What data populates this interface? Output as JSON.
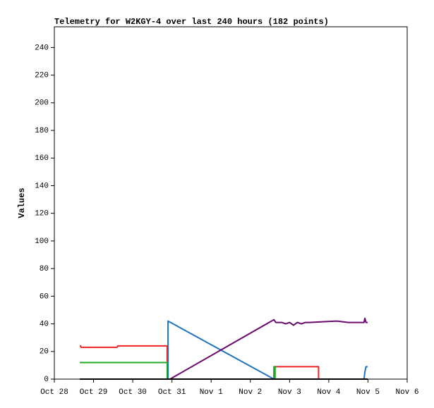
{
  "chart_data": {
    "type": "line",
    "title": "Telemetry for W2KGY-4 over last 240 hours (182 points)",
    "y_label": "Values",
    "xlim": [
      0,
      9
    ],
    "xticks": [
      {
        "value": 0,
        "label": "Oct 28"
      },
      {
        "value": 1,
        "label": "Oct 29"
      },
      {
        "value": 2,
        "label": "Oct 30"
      },
      {
        "value": 3,
        "label": "Oct 31"
      },
      {
        "value": 4,
        "label": "Nov 1"
      },
      {
        "value": 5,
        "label": "Nov 2"
      },
      {
        "value": 6,
        "label": "Nov 3"
      },
      {
        "value": 7,
        "label": "Nov 4"
      },
      {
        "value": 8,
        "label": "Nov 5"
      },
      {
        "value": 9,
        "label": "Nov 6"
      }
    ],
    "ylim": [
      0,
      255
    ],
    "yticks": [
      0,
      20,
      40,
      60,
      80,
      100,
      120,
      140,
      160,
      180,
      200,
      220,
      240
    ],
    "grid": false,
    "series": [
      {
        "color": "#ee2222",
        "x": [
          0.65,
          0.67,
          0.68,
          1.6,
          1.62,
          2.88,
          2.88,
          5.6,
          5.61,
          6.74,
          6.74
        ],
        "values": [
          24,
          24,
          23,
          23,
          24,
          24,
          0,
          0,
          9,
          9,
          0
        ]
      },
      {
        "color": "#22aa22",
        "x": [
          0.65,
          2.88,
          2.88,
          5.6,
          5.6,
          5.63,
          5.63
        ],
        "values": [
          12,
          12,
          0,
          0,
          9,
          9,
          0
        ]
      },
      {
        "color": "#1e73be",
        "x": [
          2.9,
          2.9,
          5.6,
          7.9,
          7.92,
          7.95,
          7.99
        ],
        "values": [
          0,
          42,
          0,
          0,
          5,
          9,
          9
        ]
      },
      {
        "color": "#6b0a6b",
        "x": [
          2.95,
          5.6,
          5.65,
          5.8,
          5.9,
          6.0,
          6.1,
          6.2,
          6.3,
          6.4,
          6.5,
          7.2,
          7.5,
          7.9,
          7.92,
          7.95,
          7.99
        ],
        "values": [
          0,
          43,
          41,
          41,
          40,
          41,
          39,
          41,
          40,
          41,
          41,
          42,
          41,
          41,
          44,
          41,
          41
        ]
      },
      {
        "color": "#000000",
        "x": [
          0.65,
          7.99
        ],
        "values": [
          0,
          0
        ]
      }
    ]
  }
}
